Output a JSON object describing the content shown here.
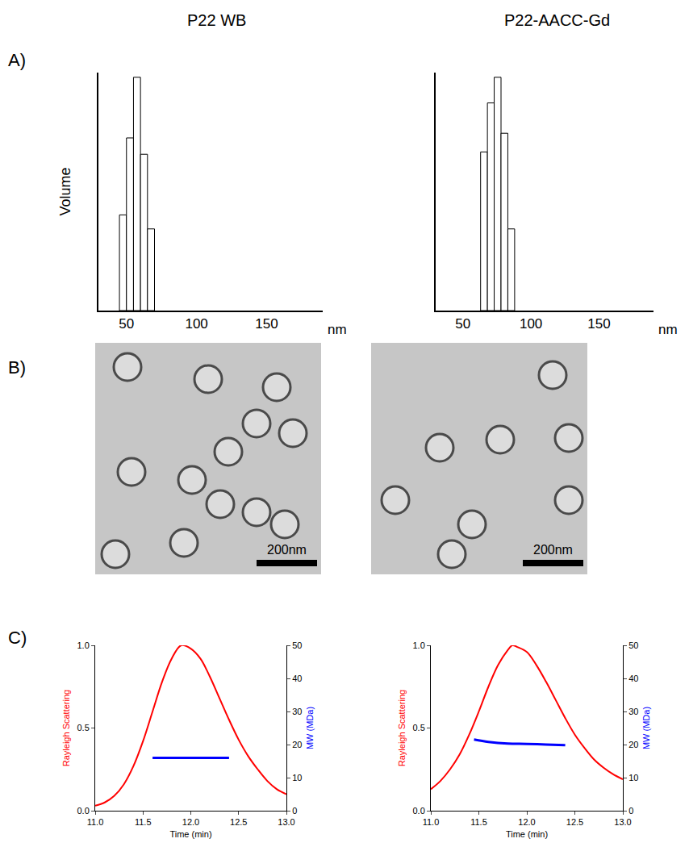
{
  "column_titles": [
    "P22 WB",
    "P22-AACC-Gd"
  ],
  "panel_labels": [
    "A)",
    "B)",
    "C)"
  ],
  "chart_data": [
    {
      "type": "histogram",
      "ylabel": "Volume",
      "xlabel": "nm",
      "bins": [
        45,
        50,
        55,
        60,
        65,
        70
      ],
      "counts": [
        0.41,
        0.74,
        1.0,
        0.67,
        0.35
      ],
      "color": "#ffffff",
      "xlim": [
        30,
        190
      ],
      "xticks": [
        50,
        100,
        150
      ],
      "ylim": [
        0,
        1.02
      ],
      "tick_labels": "x",
      "grid": false
    },
    {
      "type": "histogram",
      "xlabel": "nm",
      "bins": [
        63,
        68,
        73,
        78,
        83,
        88
      ],
      "counts": [
        0.68,
        0.89,
        1.0,
        0.76,
        0.35
      ],
      "color": "#ffffff",
      "xlim": [
        30,
        190
      ],
      "xticks": [
        50,
        100,
        150
      ],
      "ylim": [
        0,
        1.02
      ],
      "tick_labels": "x",
      "grid": false
    },
    {
      "type": "line",
      "xlabel": "Time (min)",
      "ylabel": "Rayleigh Scattering",
      "y2label": "MW (MDa)",
      "xlim": [
        11,
        13
      ],
      "xticks": [
        {
          "value": 11,
          "label": "11.0"
        },
        11.5,
        {
          "value": 12,
          "label": "12.0"
        },
        12.5,
        {
          "value": 13,
          "label": "13.0"
        }
      ],
      "ylim": [
        0,
        1
      ],
      "yticks": [
        {
          "value": 0,
          "label": "0.0"
        },
        0.5,
        {
          "value": 1,
          "label": "1.0"
        }
      ],
      "y2lim": [
        0,
        50
      ],
      "y2ticks": [
        0,
        10,
        20,
        30,
        40,
        50
      ],
      "grid": false,
      "series": [
        {
          "color": "#ff0000",
          "x": [
            11.0,
            11.1,
            11.2,
            11.3,
            11.4,
            11.5,
            11.6,
            11.7,
            11.8,
            11.9,
            12.0,
            12.1,
            12.2,
            12.3,
            12.4,
            12.5,
            12.6,
            12.7,
            12.8,
            12.9,
            13.0
          ],
          "values": [
            0.03,
            0.05,
            0.09,
            0.16,
            0.27,
            0.42,
            0.6,
            0.78,
            0.92,
            1.0,
            0.98,
            0.92,
            0.81,
            0.68,
            0.55,
            0.43,
            0.33,
            0.25,
            0.18,
            0.13,
            0.1
          ]
        },
        {
          "color": "#0000ff",
          "axis": "y2",
          "x": [
            11.6,
            11.8,
            12.0,
            12.2,
            12.4
          ],
          "values": [
            16,
            16,
            16,
            16,
            16
          ]
        }
      ]
    },
    {
      "type": "line",
      "xlabel": "Time (min)",
      "ylabel": "Rayleigh Scattering",
      "y2label": "MW (MDa)",
      "xlim": [
        11,
        13
      ],
      "xticks": [
        {
          "value": 11,
          "label": "11.0"
        },
        11.5,
        {
          "value": 12,
          "label": "12.0"
        },
        12.5,
        {
          "value": 13,
          "label": "13.0"
        }
      ],
      "ylim": [
        0,
        1
      ],
      "yticks": [
        {
          "value": 0,
          "label": "0.0"
        },
        0.5,
        {
          "value": 1,
          "label": "1.0"
        }
      ],
      "y2lim": [
        0,
        50
      ],
      "y2ticks": [
        0,
        10,
        20,
        30,
        40,
        50
      ],
      "grid": false,
      "series": [
        {
          "color": "#ff0000",
          "x": [
            11.0,
            11.1,
            11.2,
            11.3,
            11.4,
            11.5,
            11.6,
            11.7,
            11.8,
            11.85,
            11.9,
            12.0,
            12.1,
            12.2,
            12.3,
            12.4,
            12.5,
            12.6,
            12.7,
            12.8,
            12.9,
            13.0
          ],
          "values": [
            0.13,
            0.18,
            0.25,
            0.34,
            0.46,
            0.6,
            0.75,
            0.88,
            0.97,
            1.0,
            0.99,
            0.96,
            0.88,
            0.78,
            0.67,
            0.56,
            0.46,
            0.38,
            0.31,
            0.26,
            0.22,
            0.19
          ]
        },
        {
          "color": "#0000ff",
          "axis": "y2",
          "x": [
            11.45,
            11.6,
            11.8,
            12.0,
            12.2,
            12.4
          ],
          "values": [
            21.5,
            20.8,
            20.3,
            20.2,
            20.0,
            19.8
          ]
        }
      ]
    }
  ],
  "images": [
    {
      "scale_bar": "200nm"
    },
    {
      "scale_bar": "200nm"
    }
  ]
}
